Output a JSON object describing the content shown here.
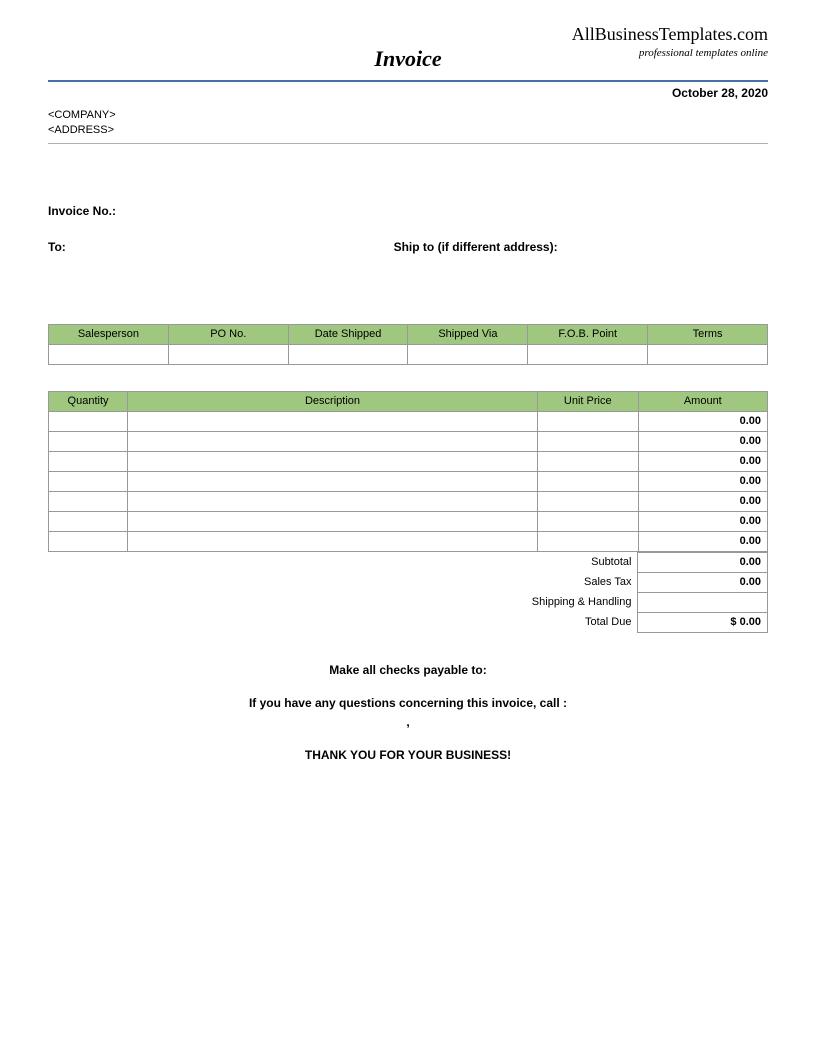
{
  "brand": {
    "name": "AllBusinessTemplates.com",
    "tagline": "professional templates online"
  },
  "title": "Invoice",
  "date": "October 28, 2020",
  "company_placeholder": "<COMPANY>",
  "address_placeholder": "<ADDRESS>",
  "labels": {
    "invoice_no": "Invoice No.:",
    "to": "To:",
    "ship_to": "Ship to (if different address):"
  },
  "shipping_table": {
    "columns": [
      "Salesperson",
      "PO No.",
      "Date Shipped",
      "Shipped Via",
      "F.O.B. Point",
      "Terms"
    ],
    "rows": [
      [
        "",
        "",
        "",
        "",
        "",
        ""
      ]
    ],
    "header_bg": "#9fc77f",
    "border_color": "#999999"
  },
  "items_table": {
    "columns": [
      "Quantity",
      "Description",
      "Unit Price",
      "Amount"
    ],
    "rows": [
      {
        "qty": "",
        "desc": "",
        "unit": "",
        "amount": "0.00"
      },
      {
        "qty": "",
        "desc": "",
        "unit": "",
        "amount": "0.00"
      },
      {
        "qty": "",
        "desc": "",
        "unit": "",
        "amount": "0.00"
      },
      {
        "qty": "",
        "desc": "",
        "unit": "",
        "amount": "0.00"
      },
      {
        "qty": "",
        "desc": "",
        "unit": "",
        "amount": "0.00"
      },
      {
        "qty": "",
        "desc": "",
        "unit": "",
        "amount": "0.00"
      },
      {
        "qty": "",
        "desc": "",
        "unit": "",
        "amount": "0.00"
      }
    ],
    "header_bg": "#9fc77f"
  },
  "totals": {
    "subtotal_label": "Subtotal",
    "subtotal_value": "0.00",
    "tax_label": "Sales Tax",
    "tax_value": "0.00",
    "shipping_label": "Shipping & Handling",
    "shipping_value": "",
    "total_label": "Total Due",
    "total_value": "$   0.00"
  },
  "footer": {
    "checks": "Make all checks payable to:",
    "questions": "If you have any questions concerning this invoice, call   :",
    "comma": ",",
    "thanks": "THANK YOU FOR YOUR BUSINESS!"
  },
  "colors": {
    "rule_blue": "#4a6fa8",
    "header_green": "#9fc77f",
    "border_gray": "#999999"
  }
}
